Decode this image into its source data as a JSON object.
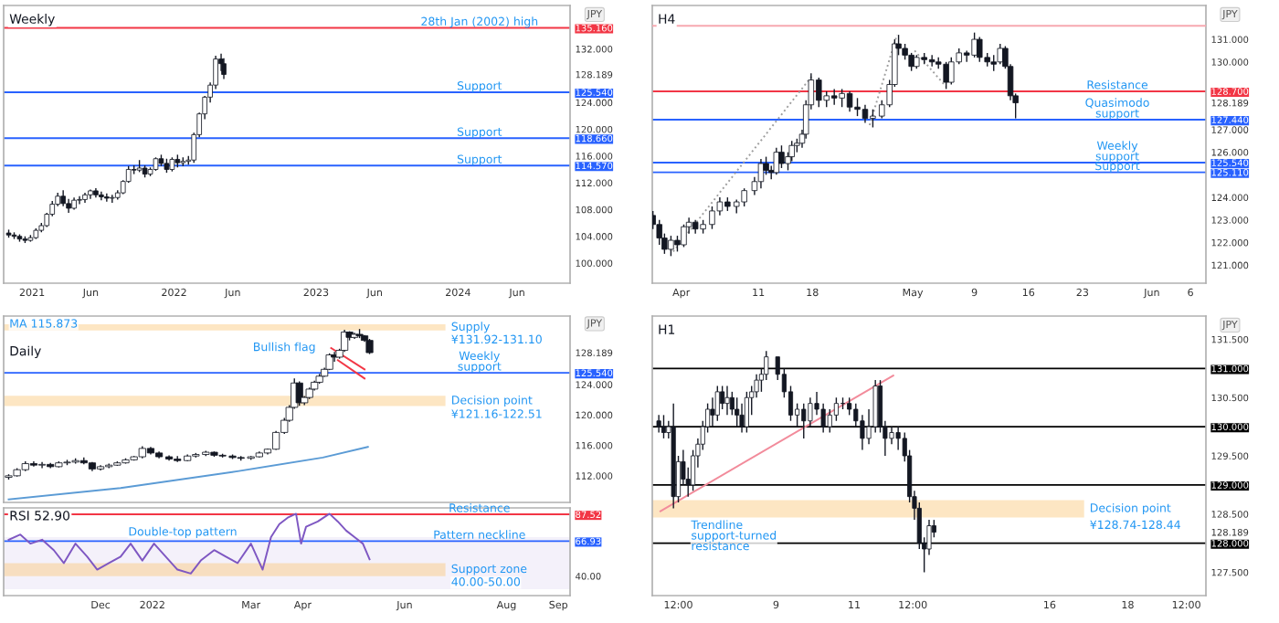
{
  "chart_data": [
    {
      "type": "candlestick",
      "title": "Weekly",
      "xlim": [
        "2020-10-20",
        "2024-10-15"
      ],
      "ylim": [
        97,
        138.5
      ],
      "xticks": [
        {
          "value": "2021-01-01",
          "label": "2021"
        },
        {
          "value": "2021-06-01",
          "label": "Jun"
        },
        {
          "value": "2022-01-01",
          "label": "2022"
        },
        {
          "value": "2022-06-01",
          "label": "Jun"
        },
        {
          "value": "2023-01-01",
          "label": "2023"
        },
        {
          "value": "2023-06-01",
          "label": "Jun"
        },
        {
          "value": "2024-01-01",
          "label": "2024"
        },
        {
          "value": "2024-06-01",
          "label": "Jun"
        }
      ],
      "yticks": [
        {
          "value": 100,
          "label": "100.000"
        },
        {
          "value": 104,
          "label": "104.000"
        },
        {
          "value": 108,
          "label": "108.000"
        },
        {
          "value": 112,
          "label": "112.000"
        },
        {
          "value": 114.57,
          "label": "114.570"
        },
        {
          "value": 116,
          "label": "116.000"
        },
        {
          "value": 118.66,
          "label": "118.660"
        },
        {
          "value": 120,
          "label": "120.000"
        },
        {
          "value": 124,
          "label": "124.000"
        },
        {
          "value": 125.54,
          "label": "125.540"
        },
        {
          "value": 128.189,
          "label": "128.189"
        },
        {
          "value": 132,
          "label": "132.000"
        },
        {
          "value": 135.16,
          "label": "135.160"
        }
      ],
      "x": [
        "2020-11-02",
        "2020-11-16",
        "2020-11-30",
        "2020-12-14",
        "2020-12-28",
        "2021-01-11",
        "2021-01-25",
        "2021-02-08",
        "2021-02-22",
        "2021-03-08",
        "2021-03-22",
        "2021-04-05",
        "2021-04-19",
        "2021-05-03",
        "2021-05-17",
        "2021-05-31",
        "2021-06-14",
        "2021-06-28",
        "2021-07-12",
        "2021-07-26",
        "2021-08-09",
        "2021-08-23",
        "2021-09-06",
        "2021-09-20",
        "2021-10-04",
        "2021-10-18",
        "2021-11-01",
        "2021-11-15",
        "2021-11-29",
        "2021-12-13",
        "2021-12-27",
        "2022-01-10",
        "2022-01-24",
        "2022-02-07",
        "2022-02-21",
        "2022-03-07",
        "2022-03-21",
        "2022-04-04",
        "2022-04-18",
        "2022-05-02",
        "2022-05-09"
      ],
      "ohlc": [
        [
          104.5,
          105.0,
          103.8,
          104.2
        ],
        [
          104.2,
          104.6,
          103.6,
          104.0
        ],
        [
          104.0,
          104.3,
          103.2,
          103.6
        ],
        [
          103.6,
          104.0,
          103.0,
          103.4
        ],
        [
          103.4,
          104.2,
          103.2,
          103.8
        ],
        [
          103.8,
          105.2,
          103.6,
          104.9
        ],
        [
          104.9,
          106.0,
          104.6,
          105.6
        ],
        [
          105.6,
          107.5,
          105.4,
          107.3
        ],
        [
          107.3,
          109.3,
          107.0,
          108.8
        ],
        [
          108.8,
          110.5,
          108.5,
          110.0
        ],
        [
          110.0,
          110.9,
          108.5,
          108.9
        ],
        [
          108.9,
          109.6,
          107.5,
          108.2
        ],
        [
          108.2,
          109.8,
          108.0,
          109.4
        ],
        [
          109.4,
          110.0,
          108.8,
          109.5
        ],
        [
          109.5,
          110.5,
          109.0,
          110.2
        ],
        [
          110.2,
          111.0,
          109.6,
          110.8
        ],
        [
          110.8,
          111.2,
          109.8,
          110.2
        ],
        [
          110.2,
          110.7,
          109.4,
          109.9
        ],
        [
          109.9,
          110.4,
          109.2,
          109.7
        ],
        [
          109.7,
          110.2,
          109.0,
          109.8
        ],
        [
          109.8,
          110.9,
          109.5,
          110.5
        ],
        [
          110.5,
          112.4,
          110.3,
          112.2
        ],
        [
          112.2,
          114.5,
          112.0,
          114.0
        ],
        [
          114.0,
          114.6,
          113.3,
          113.9
        ],
        [
          113.9,
          115.4,
          113.6,
          114.2
        ],
        [
          114.2,
          114.6,
          112.8,
          113.3
        ],
        [
          113.3,
          114.3,
          113.0,
          114.0
        ],
        [
          114.0,
          115.8,
          113.8,
          115.6
        ],
        [
          115.6,
          116.2,
          114.5,
          114.9
        ],
        [
          114.9,
          115.6,
          113.5,
          114.0
        ],
        [
          114.0,
          115.8,
          113.7,
          115.5
        ],
        [
          115.5,
          116.2,
          114.3,
          115.0
        ],
        [
          115.0,
          115.8,
          114.5,
          115.2
        ],
        [
          115.2,
          116.0,
          114.7,
          115.4
        ],
        [
          115.4,
          119.5,
          115.0,
          119.2
        ],
        [
          119.2,
          122.5,
          118.8,
          122.3
        ],
        [
          122.3,
          125.0,
          121.5,
          124.8
        ],
        [
          124.8,
          127.0,
          124.0,
          126.6
        ],
        [
          126.6,
          131.0,
          126.0,
          130.5
        ],
        [
          130.5,
          131.3,
          128.7,
          129.8
        ],
        [
          129.8,
          130.6,
          127.5,
          128.189
        ]
      ],
      "ref_lines": [
        {
          "axis": "y",
          "value": 135.16,
          "label": "28th Jan (2002) high",
          "color": "#f23645"
        },
        {
          "axis": "y",
          "value": 125.54,
          "label": "Support",
          "color": "#2962ff"
        },
        {
          "axis": "y",
          "value": 118.66,
          "label": "Support",
          "color": "#2962ff"
        },
        {
          "axis": "y",
          "value": 114.57,
          "label": "Support",
          "color": "#2962ff"
        }
      ],
      "annotations": [
        "JPY"
      ],
      "grid": false
    },
    {
      "type": "candlestick",
      "title": "H4",
      "xlim": [
        "2022-03-28T06:00",
        "2022-06-08"
      ],
      "ylim": [
        120.2,
        132.5
      ],
      "xticks": [
        {
          "value": "2022-04-01",
          "label": "Apr"
        },
        {
          "value": "2022-04-11",
          "label": "11"
        },
        {
          "value": "2022-04-18",
          "label": "18"
        },
        {
          "value": "2022-05-01",
          "label": "May"
        },
        {
          "value": "2022-05-09",
          "label": "9"
        },
        {
          "value": "2022-05-16",
          "label": "16"
        },
        {
          "value": "2022-05-23",
          "label": "23"
        },
        {
          "value": "2022-06-01",
          "label": "Jun"
        },
        {
          "value": "2022-06-06",
          "label": "6"
        }
      ],
      "yticks": [
        {
          "value": 121,
          "label": "121.000"
        },
        {
          "value": 122,
          "label": "122.000"
        },
        {
          "value": 123,
          "label": "123.000"
        },
        {
          "value": 124,
          "label": "124.000"
        },
        {
          "value": 125.11,
          "label": "125.110"
        },
        {
          "value": 125.54,
          "label": "125.540"
        },
        {
          "value": 126,
          "label": "126.000"
        },
        {
          "value": 127,
          "label": "127.000"
        },
        {
          "value": 127.44,
          "label": "127.440"
        },
        {
          "value": 128.189,
          "label": "128.189"
        },
        {
          "value": 128.7,
          "label": "128.700"
        },
        {
          "value": 130,
          "label": "130.000"
        },
        {
          "value": 131,
          "label": "131.000"
        }
      ],
      "x": [
        "2022-03-28T08:00",
        "2022-03-29T04:00",
        "2022-03-29T20:00",
        "2022-03-30T16:00",
        "2022-03-31T12:00",
        "2022-04-01T08:00",
        "2022-04-02T00:00",
        "2022-04-02T20:00",
        "2022-04-03T20:00",
        "2022-04-05T00:00",
        "2022-04-06T00:00",
        "2022-04-07T00:00",
        "2022-04-08T04:00",
        "2022-04-09T04:00",
        "2022-04-10T12:00",
        "2022-04-11T08:00",
        "2022-04-12T00:00",
        "2022-04-12T16:00",
        "2022-04-13T08:00",
        "2022-04-14T00:00",
        "2022-04-14T20:00",
        "2022-04-15T08:00",
        "2022-04-16T00:00",
        "2022-04-16T16:00",
        "2022-04-17T04:00",
        "2022-04-17T20:00",
        "2022-04-18T20:00",
        "2022-04-19T20:00",
        "2022-04-20T20:00",
        "2022-04-21T20:00",
        "2022-04-22T20:00",
        "2022-04-23T20:00",
        "2022-04-24T20:00",
        "2022-04-25T20:00",
        "2022-04-27T00:00",
        "2022-04-28T00:00",
        "2022-04-28T16:00",
        "2022-04-29T04:00",
        "2022-04-30T00:00",
        "2022-04-30T20:00",
        "2022-05-01T12:00",
        "2022-05-02T12:00",
        "2022-05-03T12:00",
        "2022-05-04T08:00",
        "2022-05-05T08:00",
        "2022-05-06T00:00",
        "2022-05-07T00:00",
        "2022-05-08T00:00",
        "2022-05-09T00:00",
        "2022-05-09T16:00",
        "2022-05-10T16:00",
        "2022-05-11T12:00",
        "2022-05-12T08:00",
        "2022-05-13T00:00",
        "2022-05-13T16:00",
        "2022-05-14T08:00"
      ],
      "ohlc": [
        [
          123.2,
          123.4,
          122.6,
          122.8
        ],
        [
          122.8,
          123.0,
          121.9,
          122.2
        ],
        [
          122.2,
          122.4,
          121.5,
          121.7
        ],
        [
          121.7,
          122.3,
          121.4,
          122.1
        ],
        [
          122.1,
          122.3,
          121.6,
          121.9
        ],
        [
          121.9,
          122.8,
          121.8,
          122.7
        ],
        [
          122.7,
          123.1,
          122.4,
          122.9
        ],
        [
          122.9,
          123.0,
          122.4,
          122.6
        ],
        [
          122.6,
          123.0,
          122.4,
          122.8
        ],
        [
          122.8,
          123.6,
          122.6,
          123.4
        ],
        [
          123.4,
          124.0,
          123.2,
          123.8
        ],
        [
          123.8,
          124.0,
          123.4,
          123.6
        ],
        [
          123.6,
          123.9,
          123.3,
          123.8
        ],
        [
          123.8,
          124.4,
          123.6,
          124.3
        ],
        [
          124.3,
          124.9,
          124.1,
          124.7
        ],
        [
          124.7,
          125.7,
          124.4,
          125.5
        ],
        [
          125.5,
          125.8,
          125.0,
          125.2
        ],
        [
          125.2,
          125.4,
          124.8,
          125.1
        ],
        [
          125.1,
          126.2,
          125.0,
          126.0
        ],
        [
          126.0,
          126.3,
          125.3,
          125.5
        ],
        [
          125.5,
          126.0,
          125.2,
          125.8
        ],
        [
          125.8,
          126.5,
          125.6,
          126.3
        ],
        [
          126.3,
          126.6,
          126.0,
          126.4
        ],
        [
          126.4,
          127.0,
          126.2,
          126.8
        ],
        [
          126.8,
          128.3,
          126.6,
          128.1
        ],
        [
          128.1,
          129.5,
          127.9,
          129.2
        ],
        [
          129.2,
          129.3,
          128.0,
          128.3
        ],
        [
          128.3,
          128.7,
          128.0,
          128.5
        ],
        [
          128.5,
          128.8,
          128.1,
          128.4
        ],
        [
          128.4,
          128.8,
          128.0,
          128.6
        ],
        [
          128.6,
          128.7,
          127.8,
          128.0
        ],
        [
          128.0,
          128.4,
          127.6,
          127.9
        ],
        [
          127.9,
          128.1,
          127.3,
          127.5
        ],
        [
          127.5,
          127.9,
          127.1,
          127.6
        ],
        [
          127.6,
          128.3,
          127.5,
          128.1
        ],
        [
          128.1,
          129.2,
          128.0,
          129.0
        ],
        [
          129.0,
          131.0,
          128.9,
          130.8
        ],
        [
          130.8,
          131.2,
          130.3,
          130.6
        ],
        [
          130.6,
          130.8,
          130.1,
          130.3
        ],
        [
          130.3,
          130.4,
          129.6,
          129.8
        ],
        [
          129.8,
          130.3,
          129.7,
          130.2
        ],
        [
          130.2,
          130.4,
          129.9,
          130.1
        ],
        [
          130.1,
          130.3,
          129.8,
          130.0
        ],
        [
          130.0,
          130.2,
          129.7,
          129.9
        ],
        [
          129.9,
          130.0,
          128.8,
          129.1
        ],
        [
          129.1,
          130.2,
          129.0,
          130.0
        ],
        [
          130.0,
          130.6,
          129.9,
          130.4
        ],
        [
          130.4,
          130.5,
          130.0,
          130.3
        ],
        [
          130.3,
          131.3,
          130.2,
          131.0
        ],
        [
          131.0,
          131.1,
          130.0,
          130.2
        ],
        [
          130.2,
          130.4,
          129.8,
          130.0
        ],
        [
          130.0,
          130.3,
          129.6,
          129.9
        ],
        [
          130.0,
          130.8,
          129.9,
          130.6
        ],
        [
          130.6,
          130.7,
          129.7,
          129.8
        ],
        [
          129.8,
          129.9,
          128.3,
          128.5
        ],
        [
          128.5,
          128.6,
          127.5,
          128.189
        ]
      ],
      "series": [
        {
          "type": "line",
          "x": [
            "2022-03-28T06:00",
            "2022-06-08"
          ],
          "values": [
            131.6,
            131.6
          ],
          "color": "#f7a8b0",
          "line_style": "solid"
        },
        {
          "type": "line",
          "x": [
            "2022-03-30T23:00",
            "2022-04-18T00:00"
          ],
          "values": [
            121.6,
            129.4
          ],
          "color": "#9e9e9e",
          "line_style": "dotted"
        },
        {
          "type": "line",
          "x": [
            "2022-04-25T10:00",
            "2022-04-28T23:00"
          ],
          "values": [
            127.2,
            131.2
          ],
          "color": "#9e9e9e",
          "line_style": "dotted"
        },
        {
          "type": "line",
          "x": [
            "2022-05-01T06:00",
            "2022-05-05T08:00"
          ],
          "values": [
            130.5,
            128.9
          ],
          "color": "#9e9e9e",
          "line_style": "dotted"
        }
      ],
      "ref_lines": [
        {
          "axis": "y",
          "value": 128.7,
          "label": "Resistance",
          "color": "#f23645"
        },
        {
          "axis": "y",
          "value": 127.44,
          "label": "Quasimodo\nsupport",
          "color": "#2962ff"
        },
        {
          "axis": "y",
          "value": 125.54,
          "label": "Weekly\nsupport",
          "color": "#2962ff"
        },
        {
          "axis": "y",
          "value": 125.11,
          "label": "Support",
          "color": "#2962ff"
        }
      ],
      "annotations": [
        "JPY"
      ],
      "grid": false
    },
    {
      "type": "candlestick",
      "title": "Daily",
      "xlim": [
        "2021-10-04",
        "2022-09-08"
      ],
      "ylim": [
        108.5,
        133
      ],
      "tick_labels": "y",
      "yticks": [
        {
          "value": 112,
          "label": "112.000"
        },
        {
          "value": 116,
          "label": "116.000"
        },
        {
          "value": 120,
          "label": "120.000"
        },
        {
          "value": 124,
          "label": "124.000"
        },
        {
          "value": 125.54,
          "label": "125.540"
        },
        {
          "value": 128.189,
          "label": "128.189"
        }
      ],
      "x": [
        "2021-10-07",
        "2021-10-12",
        "2021-10-17",
        "2021-10-22",
        "2021-10-27",
        "2021-11-01",
        "2021-11-06",
        "2021-11-11",
        "2021-11-16",
        "2021-11-21",
        "2021-11-26",
        "2021-12-01",
        "2021-12-06",
        "2021-12-11",
        "2021-12-16",
        "2021-12-21",
        "2021-12-26",
        "2021-12-31",
        "2022-01-05",
        "2022-01-11",
        "2022-01-16",
        "2022-01-22",
        "2022-01-27",
        "2022-02-02",
        "2022-02-07",
        "2022-02-12",
        "2022-02-18",
        "2022-02-23",
        "2022-03-01",
        "2022-03-06",
        "2022-03-11",
        "2022-03-16",
        "2022-03-21",
        "2022-03-24",
        "2022-03-27",
        "2022-03-30",
        "2022-04-02",
        "2022-04-05",
        "2022-04-08",
        "2022-04-11",
        "2022-04-14",
        "2022-04-17",
        "2022-04-20",
        "2022-04-23",
        "2022-04-26",
        "2022-04-29",
        "2022-05-02",
        "2022-05-05",
        "2022-05-08",
        "2022-05-11"
      ],
      "ohlc": [
        [
          111.8,
          112.2,
          111.5,
          112.0
        ],
        [
          112.0,
          113.0,
          111.9,
          112.8
        ],
        [
          112.8,
          113.9,
          112.6,
          113.6
        ],
        [
          113.6,
          113.9,
          113.2,
          113.4
        ],
        [
          113.4,
          113.8,
          113.0,
          113.5
        ],
        [
          113.5,
          113.7,
          113.0,
          113.2
        ],
        [
          113.2,
          113.9,
          113.1,
          113.7
        ],
        [
          113.7,
          114.1,
          113.4,
          113.8
        ],
        [
          113.8,
          114.3,
          113.6,
          114.0
        ],
        [
          114.0,
          114.4,
          113.5,
          113.7
        ],
        [
          113.7,
          113.8,
          112.6,
          112.9
        ],
        [
          112.9,
          113.4,
          112.7,
          113.2
        ],
        [
          113.2,
          113.6,
          113.0,
          113.4
        ],
        [
          113.4,
          113.9,
          113.3,
          113.7
        ],
        [
          113.7,
          114.3,
          113.6,
          114.1
        ],
        [
          114.1,
          114.6,
          114.0,
          114.5
        ],
        [
          114.5,
          115.9,
          114.3,
          115.6
        ],
        [
          115.6,
          115.8,
          114.8,
          115.0
        ],
        [
          115.0,
          115.2,
          114.3,
          114.5
        ],
        [
          114.5,
          114.7,
          114.0,
          114.2
        ],
        [
          114.2,
          114.6,
          113.8,
          114.0
        ],
        [
          114.0,
          114.8,
          113.9,
          114.6
        ],
        [
          114.6,
          115.0,
          114.4,
          114.8
        ],
        [
          114.8,
          115.3,
          114.6,
          115.1
        ],
        [
          115.1,
          115.2,
          114.5,
          114.7
        ],
        [
          114.7,
          114.9,
          114.4,
          114.6
        ],
        [
          114.6,
          114.8,
          114.2,
          114.4
        ],
        [
          114.4,
          114.6,
          114.0,
          114.3
        ],
        [
          114.3,
          114.6,
          114.1,
          114.5
        ],
        [
          114.5,
          115.2,
          114.4,
          115.0
        ],
        [
          115.0,
          115.6,
          114.8,
          115.5
        ],
        [
          115.5,
          117.9,
          115.4,
          117.7
        ],
        [
          117.7,
          119.6,
          117.5,
          119.3
        ],
        [
          119.3,
          121.3,
          119.1,
          121.0
        ],
        [
          121.0,
          124.8,
          120.8,
          124.2
        ],
        [
          124.2,
          124.4,
          121.2,
          121.6
        ],
        [
          121.6,
          122.5,
          121.3,
          122.3
        ],
        [
          122.3,
          123.6,
          122.1,
          123.4
        ],
        [
          123.4,
          124.5,
          123.2,
          124.3
        ],
        [
          124.3,
          125.4,
          124.1,
          125.1
        ],
        [
          125.1,
          126.2,
          125.0,
          126.0
        ],
        [
          126.0,
          128.1,
          125.9,
          127.9
        ],
        [
          127.9,
          128.3,
          127.0,
          127.6
        ],
        [
          127.6,
          128.7,
          127.4,
          128.5
        ],
        [
          128.5,
          131.2,
          128.3,
          130.9
        ],
        [
          130.9,
          131.0,
          129.8,
          130.2
        ],
        [
          130.2,
          130.8,
          130.0,
          130.6
        ],
        [
          130.6,
          131.3,
          130.1,
          130.4
        ],
        [
          130.4,
          130.5,
          129.6,
          129.8
        ],
        [
          129.8,
          130.0,
          128.0,
          128.189
        ]
      ],
      "series": [
        {
          "type": "line",
          "x": [
            "2021-10-07",
            "2021-12-13",
            "2022-02-21",
            "2022-04-13",
            "2022-05-10"
          ],
          "values": [
            108.9,
            110.4,
            112.6,
            114.4,
            115.8
          ],
          "color": "#5b9bd5",
          "line_style": "solid"
        },
        {
          "type": "line",
          "x": [
            "2022-04-18",
            "2022-05-08"
          ],
          "values": [
            128.8,
            126.0
          ],
          "color": "#f23645",
          "line_style": "solid"
        },
        {
          "type": "line",
          "x": [
            "2022-04-22",
            "2022-05-08"
          ],
          "values": [
            127.2,
            124.8
          ],
          "color": "#f23645",
          "line_style": "solid"
        }
      ],
      "ref_lines": [
        {
          "axis": "y",
          "value": 125.54,
          "label": "Weekly\nsupport",
          "color": "#2962ff"
        }
      ],
      "bands": [
        {
          "axis": "y",
          "from": 131.1,
          "to": 131.92,
          "label": "Supply",
          "color": "#fbc77a"
        },
        {
          "axis": "y",
          "from": 121.16,
          "to": 122.51,
          "label": "Decision point",
          "color": "#fbc77a"
        }
      ],
      "annotations": [
        "JPY",
        "MA 115.873",
        "Bullish flag",
        "¥131.92-131.10",
        "¥121.16-122.51"
      ],
      "grid": false
    },
    {
      "type": "line",
      "title": "RSI 52.90",
      "xlim": [
        "2021-10-04",
        "2022-09-08"
      ],
      "ylim": [
        25,
        92.5
      ],
      "xticks": [
        {
          "value": "2021-12-01",
          "label": "Dec"
        },
        {
          "value": "2022-01-01",
          "label": "2022"
        },
        {
          "value": "2022-03-01",
          "label": "Mar"
        },
        {
          "value": "2022-04-01",
          "label": "Apr"
        },
        {
          "value": "2022-06-01",
          "label": "Jun"
        },
        {
          "value": "2022-08-01",
          "label": "Aug"
        },
        {
          "value": "2022-09-01",
          "label": "Sep"
        }
      ],
      "yticks": [
        {
          "value": 40,
          "label": "40.00"
        },
        {
          "value": 66.93,
          "label": "66.93"
        },
        {
          "value": 87.52,
          "label": "87.52"
        }
      ],
      "series": [
        {
          "x": [
            "2021-10-07",
            "2021-10-14",
            "2021-10-20",
            "2021-10-27",
            "2021-11-03",
            "2021-11-09",
            "2021-11-16",
            "2021-11-23",
            "2021-11-29",
            "2021-12-06",
            "2021-12-13",
            "2021-12-19",
            "2021-12-26",
            "2022-01-02",
            "2022-01-09",
            "2022-01-16",
            "2022-01-24",
            "2022-01-30",
            "2022-02-07",
            "2022-02-14",
            "2022-02-21",
            "2022-03-01",
            "2022-03-08",
            "2022-03-13",
            "2022-03-18",
            "2022-03-23",
            "2022-03-28",
            "2022-03-31",
            "2022-04-03",
            "2022-04-10",
            "2022-04-17",
            "2022-04-22",
            "2022-04-27",
            "2022-05-02",
            "2022-05-07",
            "2022-05-11"
          ],
          "values": [
            68,
            72,
            65,
            68,
            60,
            50,
            65,
            55,
            45,
            50,
            55,
            65,
            52,
            65,
            55,
            45,
            42,
            52,
            60,
            55,
            50,
            65,
            45,
            70,
            80,
            85,
            88,
            65,
            78,
            82,
            88,
            82,
            75,
            70,
            65,
            52.9
          ],
          "color": "#7e57c2",
          "line_style": "solid"
        }
      ],
      "ref_lines": [
        {
          "axis": "y",
          "value": 87.52,
          "label": "Resistance",
          "color": "#f23645"
        },
        {
          "axis": "y",
          "value": 66.93,
          "label": "Pattern neckline",
          "color": "#2962ff"
        }
      ],
      "bands": [
        {
          "axis": "y",
          "from": 30,
          "to": 70,
          "color": "#ede7f6"
        },
        {
          "axis": "y",
          "from": 40,
          "to": 50,
          "label": "Support zone",
          "color": "#fbc77a"
        }
      ],
      "annotations": [
        "Double-top pattern",
        "40.00-50.00"
      ],
      "grid": false
    },
    {
      "type": "candlestick",
      "title": "H1",
      "xlim": [
        "2022-05-05T20:00",
        "2022-05-20T00:00"
      ],
      "ylim": [
        127.1,
        131.9
      ],
      "xticks": [
        {
          "value": "2022-05-06T12:00",
          "label": "12:00"
        },
        {
          "value": "2022-05-09",
          "label": "9"
        },
        {
          "value": "2022-05-11",
          "label": "11"
        },
        {
          "value": "2022-05-12T12:00",
          "label": "12:00"
        },
        {
          "value": "2022-05-16",
          "label": "16"
        },
        {
          "value": "2022-05-18",
          "label": "18"
        },
        {
          "value": "2022-05-19T12:00",
          "label": "12:00"
        }
      ],
      "yticks": [
        {
          "value": 127.5,
          "label": "127.500"
        },
        {
          "value": 128,
          "label": "128.000"
        },
        {
          "value": 128.189,
          "label": "128.189"
        },
        {
          "value": 128.5,
          "label": "128.500"
        },
        {
          "value": 129,
          "label": "129.000"
        },
        {
          "value": 129.5,
          "label": "129.500"
        },
        {
          "value": 130,
          "label": "130.000"
        },
        {
          "value": 130.5,
          "label": "130.500"
        },
        {
          "value": 131,
          "label": "131.000"
        },
        {
          "value": 131.5,
          "label": "131.500"
        }
      ],
      "x": [
        "2022-05-06T00:00",
        "2022-05-06T03:00",
        "2022-05-06T06:00",
        "2022-05-06T09:00",
        "2022-05-06T12:00",
        "2022-05-06T15:00",
        "2022-05-06T18:00",
        "2022-05-06T21:00",
        "2022-05-07T00:00",
        "2022-05-07T03:00",
        "2022-05-07T06:00",
        "2022-05-07T09:00",
        "2022-05-07T12:00",
        "2022-05-07T15:00",
        "2022-05-07T18:00",
        "2022-05-07T21:00",
        "2022-05-08T00:00",
        "2022-05-08T03:00",
        "2022-05-08T06:00",
        "2022-05-08T09:00",
        "2022-05-08T12:00",
        "2022-05-08T15:00",
        "2022-05-08T18:00",
        "2022-05-09T01:00",
        "2022-05-09T05:00",
        "2022-05-09T09:00",
        "2022-05-09T13:00",
        "2022-05-09T17:00",
        "2022-05-09T21:00",
        "2022-05-10T01:00",
        "2022-05-10T05:00",
        "2022-05-10T09:00",
        "2022-05-10T13:00",
        "2022-05-10T17:00",
        "2022-05-10T21:00",
        "2022-05-11T01:00",
        "2022-05-11T05:00",
        "2022-05-11T09:00",
        "2022-05-11T13:00",
        "2022-05-11T16:00",
        "2022-05-11T19:00",
        "2022-05-11T23:00",
        "2022-05-12T03:00",
        "2022-05-12T07:00",
        "2022-05-12T10:00",
        "2022-05-12T13:00",
        "2022-05-12T16:00",
        "2022-05-12T19:00",
        "2022-05-12T22:00",
        "2022-05-13T01:00"
      ],
      "ohlc": [
        [
          130.1,
          130.2,
          129.9,
          130.0
        ],
        [
          130.0,
          130.2,
          129.8,
          129.9
        ],
        [
          129.9,
          130.1,
          129.8,
          130.0
        ],
        [
          130.0,
          130.4,
          128.6,
          128.8
        ],
        [
          128.8,
          129.5,
          128.7,
          129.4
        ],
        [
          129.4,
          129.6,
          129.0,
          129.1
        ],
        [
          129.1,
          129.3,
          128.8,
          129.0
        ],
        [
          129.0,
          129.6,
          128.9,
          129.5
        ],
        [
          129.5,
          129.8,
          129.3,
          129.7
        ],
        [
          129.7,
          130.1,
          129.6,
          130.0
        ],
        [
          130.0,
          130.4,
          129.9,
          130.3
        ],
        [
          130.3,
          130.5,
          130.0,
          130.2
        ],
        [
          130.2,
          130.7,
          130.1,
          130.6
        ],
        [
          130.6,
          130.7,
          130.3,
          130.4
        ],
        [
          130.4,
          130.7,
          130.2,
          130.5
        ],
        [
          130.5,
          130.6,
          130.2,
          130.3
        ],
        [
          130.3,
          130.5,
          130.0,
          130.2
        ],
        [
          130.2,
          130.4,
          129.9,
          130.0
        ],
        [
          130.0,
          130.6,
          129.9,
          130.5
        ],
        [
          130.5,
          130.7,
          130.2,
          130.6
        ],
        [
          130.6,
          130.9,
          130.5,
          130.8
        ],
        [
          130.8,
          131.0,
          130.6,
          130.9
        ],
        [
          130.9,
          131.3,
          130.8,
          131.2
        ],
        [
          131.2,
          131.2,
          130.8,
          130.9
        ],
        [
          130.9,
          131.0,
          130.5,
          130.6
        ],
        [
          130.6,
          130.7,
          130.1,
          130.2
        ],
        [
          130.2,
          130.4,
          130.0,
          130.3
        ],
        [
          130.3,
          130.4,
          129.8,
          130.1
        ],
        [
          130.1,
          130.5,
          130.0,
          130.4
        ],
        [
          130.4,
          130.6,
          130.2,
          130.3
        ],
        [
          130.3,
          130.4,
          129.9,
          130.0
        ],
        [
          130.0,
          130.3,
          129.9,
          130.2
        ],
        [
          130.2,
          130.5,
          130.1,
          130.4
        ],
        [
          130.4,
          130.5,
          130.3,
          130.4
        ],
        [
          130.4,
          130.5,
          130.2,
          130.3
        ],
        [
          130.3,
          130.4,
          130.0,
          130.1
        ],
        [
          130.1,
          130.2,
          129.6,
          129.8
        ],
        [
          129.8,
          130.3,
          129.7,
          130.0
        ],
        [
          130.0,
          130.8,
          129.9,
          130.7
        ],
        [
          130.7,
          130.8,
          129.9,
          130.0
        ],
        [
          130.0,
          130.1,
          129.5,
          129.8
        ],
        [
          129.8,
          130.0,
          129.7,
          129.9
        ],
        [
          129.9,
          130.0,
          129.6,
          129.8
        ],
        [
          129.8,
          129.9,
          129.4,
          129.5
        ],
        [
          129.5,
          129.6,
          128.7,
          128.8
        ],
        [
          128.8,
          128.9,
          128.4,
          128.6
        ],
        [
          128.6,
          128.7,
          127.9,
          128.0
        ],
        [
          128.0,
          128.1,
          127.5,
          127.9
        ],
        [
          127.9,
          128.4,
          127.8,
          128.3
        ],
        [
          128.3,
          128.4,
          128.1,
          128.189
        ]
      ],
      "series": [
        {
          "type": "line",
          "x": [
            "2022-05-06T01:00",
            "2022-05-12T00:00"
          ],
          "values": [
            128.55,
            130.88
          ],
          "color": "#f28b9b",
          "line_style": "solid"
        }
      ],
      "ref_lines": [
        {
          "axis": "y",
          "value": 131,
          "color": "#000000"
        },
        {
          "axis": "y",
          "value": 130,
          "color": "#000000"
        },
        {
          "axis": "y",
          "value": 129,
          "color": "#000000"
        },
        {
          "axis": "y",
          "value": 128,
          "color": "#000000"
        }
      ],
      "bands": [
        {
          "axis": "y",
          "from": 128.44,
          "to": 128.74,
          "label": "Decision point",
          "color": "#fbc77a"
        }
      ],
      "annotations": [
        "JPY",
        "Trendline\nsupport-turned\nresistance",
        "¥128.74-128.44"
      ],
      "grid": false
    }
  ]
}
